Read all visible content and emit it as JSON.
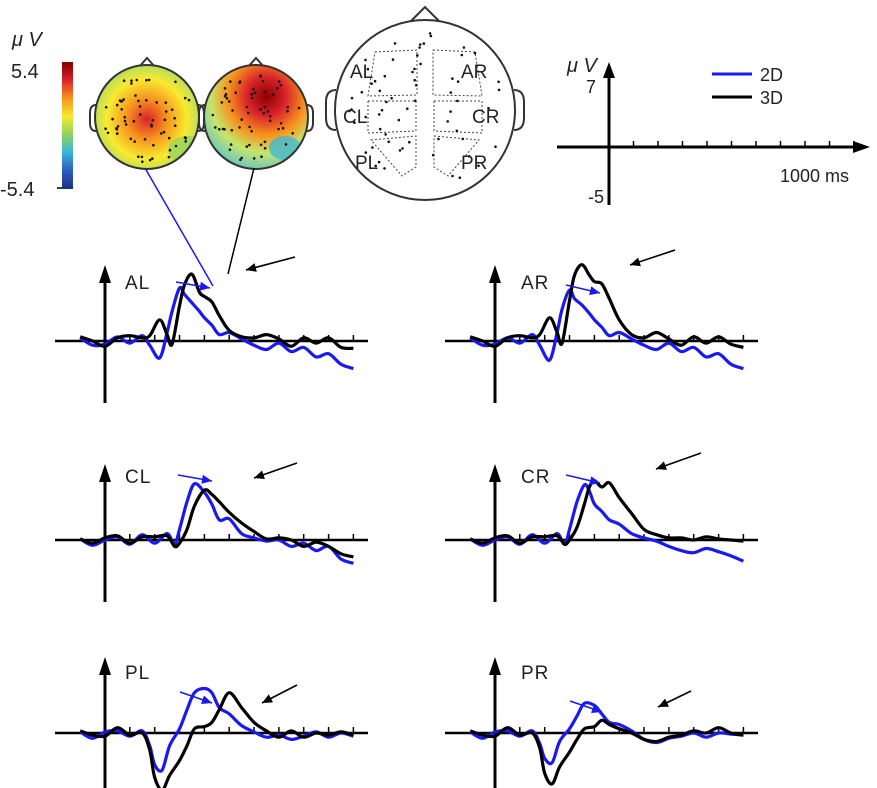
{
  "colors": {
    "2D": "#1a1aee",
    "3D": "#000000"
  },
  "colorbar": {
    "unit": "μ V",
    "max_label": "5.4",
    "min_label": "-5.4",
    "colormap": [
      "#7f0000",
      "#d9232a",
      "#f7931e",
      "#f8ea2f",
      "#8dd35f",
      "#38b6d8",
      "#2b5cc0",
      "#1f2d8a"
    ]
  },
  "headmap": {
    "regions": [
      "AL",
      "AR",
      "CL",
      "CR",
      "PL",
      "PR"
    ]
  },
  "scale_axis": {
    "unit": "μ V",
    "y_max_label": "7",
    "y_min_label": "-5",
    "x_label": "1000 ms",
    "ticks": 10
  },
  "legend": [
    "2D",
    "3D"
  ],
  "chart_data": {
    "type": "line",
    "x_unit": "ms",
    "y_unit": "μV",
    "xlim": [
      -100,
      1000
    ],
    "ylim": [
      -5,
      7
    ],
    "series_names": [
      "2D",
      "3D"
    ],
    "panels": [
      {
        "label": "AL",
        "x": [
          -100,
          -50,
          0,
          50,
          100,
          150,
          180,
          220,
          250,
          270,
          300,
          320,
          350,
          380,
          400,
          430,
          460,
          500,
          550,
          600,
          650,
          700,
          750,
          800,
          850,
          900,
          950,
          1000
        ],
        "2D": [
          0.3,
          -0.4,
          -0.3,
          0.4,
          -0.2,
          0.5,
          -0.4,
          -1.6,
          0.8,
          2.8,
          5.0,
          4.4,
          3.6,
          2.8,
          2.2,
          1.5,
          0.6,
          0.8,
          0.2,
          -0.4,
          -0.8,
          -0.2,
          -1.0,
          -0.6,
          -1.5,
          -1.2,
          -2.2,
          -2.6
        ],
        "3D": [
          0.4,
          0.0,
          -0.5,
          0.3,
          0.5,
          0.3,
          0.5,
          2.0,
          0.6,
          -0.3,
          3.3,
          5.3,
          6.3,
          4.6,
          4.2,
          3.7,
          2.4,
          1.0,
          0.4,
          0.3,
          0.6,
          0.2,
          -0.5,
          0.3,
          -0.2,
          0.3,
          -0.6,
          -0.7
        ]
      },
      {
        "label": "AR",
        "x": [
          -100,
          -50,
          0,
          50,
          100,
          150,
          180,
          220,
          250,
          270,
          300,
          320,
          350,
          380,
          400,
          430,
          460,
          500,
          550,
          600,
          650,
          700,
          750,
          800,
          850,
          900,
          950,
          1000
        ],
        "2D": [
          0.3,
          -0.4,
          -0.3,
          0.3,
          -0.2,
          0.6,
          -0.4,
          -1.8,
          0.8,
          3.0,
          4.8,
          4.0,
          3.4,
          2.6,
          2.0,
          1.3,
          0.5,
          0.8,
          0.2,
          -0.4,
          -0.8,
          -0.2,
          -1.0,
          -0.6,
          -1.5,
          -1.2,
          -2.2,
          -2.6
        ],
        "3D": [
          0.4,
          0.0,
          -0.5,
          0.3,
          0.5,
          0.3,
          0.6,
          2.2,
          0.8,
          -0.2,
          3.8,
          6.2,
          7.2,
          6.2,
          5.6,
          5.4,
          4.0,
          2.0,
          0.6,
          0.3,
          0.8,
          0.2,
          -0.4,
          0.4,
          -0.2,
          0.4,
          -0.3,
          -0.6
        ]
      },
      {
        "label": "CL",
        "x": [
          -100,
          -50,
          0,
          50,
          100,
          150,
          200,
          250,
          280,
          300,
          330,
          360,
          400,
          430,
          460,
          500,
          550,
          600,
          650,
          700,
          750,
          800,
          850,
          900,
          950,
          1000
        ],
        "2D": [
          0.1,
          -0.5,
          0.0,
          0.3,
          -0.4,
          0.5,
          -0.3,
          0.6,
          -0.4,
          1.0,
          3.6,
          5.3,
          4.5,
          3.4,
          1.9,
          2.0,
          0.6,
          0.2,
          -0.1,
          0.0,
          -0.6,
          -0.3,
          -1.0,
          -0.6,
          -1.8,
          -2.2
        ],
        "3D": [
          0.1,
          -0.3,
          0.2,
          0.4,
          -0.3,
          0.3,
          0.3,
          0.4,
          -0.6,
          -0.3,
          1.0,
          3.2,
          4.7,
          4.3,
          3.6,
          2.6,
          1.6,
          0.8,
          0.1,
          0.2,
          0.0,
          -0.6,
          -0.2,
          -0.6,
          -1.3,
          -1.6
        ]
      },
      {
        "label": "CR",
        "x": [
          -100,
          -50,
          0,
          50,
          100,
          150,
          200,
          250,
          280,
          300,
          330,
          360,
          380,
          400,
          430,
          460,
          500,
          550,
          600,
          650,
          700,
          750,
          800,
          850,
          900,
          950,
          1000
        ],
        "2D": [
          0.1,
          -0.5,
          0.0,
          0.3,
          -0.4,
          0.5,
          -0.3,
          0.6,
          -0.4,
          1.0,
          3.6,
          5.2,
          4.6,
          3.4,
          2.7,
          1.9,
          1.5,
          0.6,
          0.2,
          -0.1,
          -0.6,
          -1.0,
          -1.2,
          -0.8,
          -1.1,
          -1.5,
          -2.0
        ],
        "3D": [
          0.1,
          -0.3,
          0.2,
          0.4,
          -0.3,
          0.3,
          0.3,
          0.4,
          -0.4,
          0.0,
          1.2,
          3.4,
          5.0,
          5.6,
          5.0,
          5.4,
          4.0,
          2.5,
          1.0,
          0.5,
          0.2,
          0.2,
          0.0,
          0.3,
          0.1,
          0.0,
          -0.1
        ]
      },
      {
        "label": "PL",
        "x": [
          -100,
          -50,
          0,
          50,
          100,
          150,
          180,
          200,
          230,
          260,
          300,
          330,
          360,
          400,
          430,
          460,
          500,
          550,
          600,
          650,
          700,
          750,
          800,
          850,
          900,
          950,
          1000
        ],
        "2D": [
          0.1,
          -0.5,
          0.1,
          0.2,
          -0.3,
          0.2,
          -1.2,
          -3.0,
          -3.5,
          -1.2,
          0.4,
          2.2,
          3.8,
          4.2,
          3.8,
          2.4,
          1.8,
          0.7,
          0.1,
          -0.4,
          -0.2,
          -0.6,
          -0.3,
          0.1,
          -0.4,
          0.0,
          -0.3
        ],
        "3D": [
          0.2,
          -0.2,
          -0.3,
          0.5,
          -0.2,
          0.0,
          -1.6,
          -4.2,
          -5.4,
          -4.0,
          -2.6,
          -1.2,
          0.4,
          0.6,
          1.0,
          2.2,
          3.8,
          2.4,
          1.0,
          0.2,
          -0.4,
          0.2,
          -0.4,
          0.0,
          -0.2,
          0.1,
          -0.2
        ]
      },
      {
        "label": "PR",
        "x": [
          -100,
          -50,
          0,
          50,
          100,
          150,
          180,
          200,
          230,
          260,
          300,
          330,
          360,
          400,
          430,
          460,
          500,
          550,
          600,
          650,
          700,
          750,
          800,
          850,
          900,
          950,
          1000
        ],
        "2D": [
          0.1,
          -0.5,
          0.1,
          0.2,
          -0.3,
          0.2,
          -1.0,
          -2.4,
          -2.8,
          -0.8,
          0.4,
          1.6,
          2.8,
          2.6,
          1.8,
          1.0,
          0.8,
          0.2,
          -0.6,
          -0.9,
          -0.5,
          -0.3,
          0.0,
          -0.4,
          0.0,
          -0.1,
          -0.2
        ],
        "3D": [
          0.2,
          -0.2,
          -0.3,
          0.5,
          -0.2,
          0.0,
          -1.4,
          -3.8,
          -4.8,
          -3.2,
          -1.8,
          -0.6,
          0.4,
          0.6,
          1.2,
          0.8,
          0.4,
          0.0,
          -0.6,
          -0.8,
          -0.4,
          -0.2,
          0.2,
          0.0,
          0.5,
          0.0,
          -0.2
        ]
      }
    ]
  }
}
